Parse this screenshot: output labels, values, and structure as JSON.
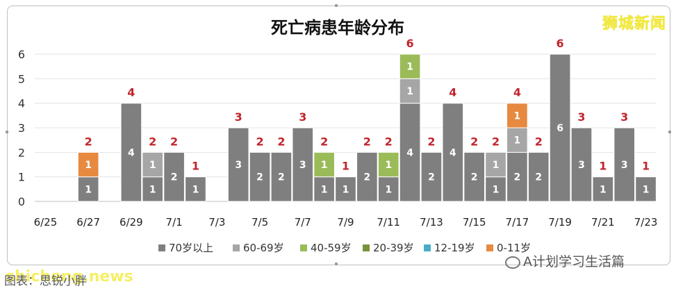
{
  "brand": "狮城新闻",
  "caption": "图表：思锐小胖",
  "watermark_left": "shicheng.news",
  "watermark_right": "A计划学习生活篇",
  "colors": {
    "70岁以上": "#7f7f7f",
    "60-69岁": "#a6a6a6",
    "40-59岁": "#9bbb59",
    "20-39岁": "#77933c",
    "12-19岁": "#4bacc6",
    "0-11岁": "#e7893f",
    "total_label": "#c0252c"
  },
  "chart_data": {
    "type": "bar",
    "stacked": true,
    "title": "死亡病患年龄分布",
    "xlabel": "",
    "ylabel": "",
    "ylim": [
      0,
      6
    ],
    "yticks": [
      0,
      1,
      2,
      3,
      4,
      5,
      6
    ],
    "grid": true,
    "legend_position": "bottom",
    "categories": [
      "6/25",
      "6/26",
      "6/27",
      "6/28",
      "6/29",
      "6/30",
      "7/1",
      "7/2",
      "7/3",
      "7/4",
      "7/5",
      "7/6",
      "7/7",
      "7/8",
      "7/9",
      "7/10",
      "7/11",
      "7/12",
      "7/13",
      "7/14",
      "7/15",
      "7/16",
      "7/17",
      "7/18",
      "7/19",
      "7/20",
      "7/21",
      "7/22",
      "7/23"
    ],
    "x_tick_labels": [
      "6/25",
      "",
      "6/27",
      "",
      "6/29",
      "",
      "7/1",
      "",
      "7/3",
      "",
      "7/5",
      "",
      "7/7",
      "",
      "7/9",
      "",
      "7/11",
      "",
      "7/13",
      "",
      "7/15",
      "",
      "7/17",
      "",
      "7/19",
      "",
      "7/21",
      "",
      "7/23"
    ],
    "series": [
      {
        "name": "70岁以上",
        "values": [
          0,
          0,
          1,
          0,
          4,
          1,
          2,
          1,
          0,
          3,
          2,
          2,
          3,
          1,
          1,
          2,
          1,
          4,
          2,
          4,
          2,
          1,
          2,
          2,
          6,
          3,
          1,
          3,
          1
        ]
      },
      {
        "name": "60-69岁",
        "values": [
          0,
          0,
          0,
          0,
          0,
          1,
          0,
          0,
          0,
          0,
          0,
          0,
          0,
          0,
          0,
          0,
          0,
          1,
          0,
          0,
          0,
          1,
          1,
          0,
          0,
          0,
          0,
          0,
          0
        ]
      },
      {
        "name": "40-59岁",
        "values": [
          0,
          0,
          0,
          0,
          0,
          0,
          0,
          0,
          0,
          0,
          0,
          0,
          0,
          1,
          0,
          0,
          1,
          1,
          0,
          0,
          0,
          0,
          0,
          0,
          0,
          0,
          0,
          0,
          0
        ]
      },
      {
        "name": "20-39岁",
        "values": [
          0,
          0,
          0,
          0,
          0,
          0,
          0,
          0,
          0,
          0,
          0,
          0,
          0,
          0,
          0,
          0,
          0,
          0,
          0,
          0,
          0,
          0,
          0,
          0,
          0,
          0,
          0,
          0,
          0
        ]
      },
      {
        "name": "12-19岁",
        "values": [
          0,
          0,
          0,
          0,
          0,
          0,
          0,
          0,
          0,
          0,
          0,
          0,
          0,
          0,
          0,
          0,
          0,
          0,
          0,
          0,
          0,
          0,
          0,
          0,
          0,
          0,
          0,
          0,
          0
        ]
      },
      {
        "name": "0-11岁",
        "values": [
          0,
          0,
          1,
          0,
          0,
          0,
          0,
          0,
          0,
          0,
          0,
          0,
          0,
          0,
          0,
          0,
          0,
          0,
          0,
          0,
          0,
          0,
          1,
          0,
          0,
          0,
          0,
          0,
          0
        ]
      }
    ],
    "totals": [
      0,
      0,
      2,
      0,
      4,
      2,
      2,
      1,
      0,
      3,
      2,
      2,
      3,
      2,
      1,
      2,
      2,
      6,
      2,
      4,
      2,
      2,
      4,
      2,
      6,
      3,
      1,
      3,
      1
    ]
  }
}
